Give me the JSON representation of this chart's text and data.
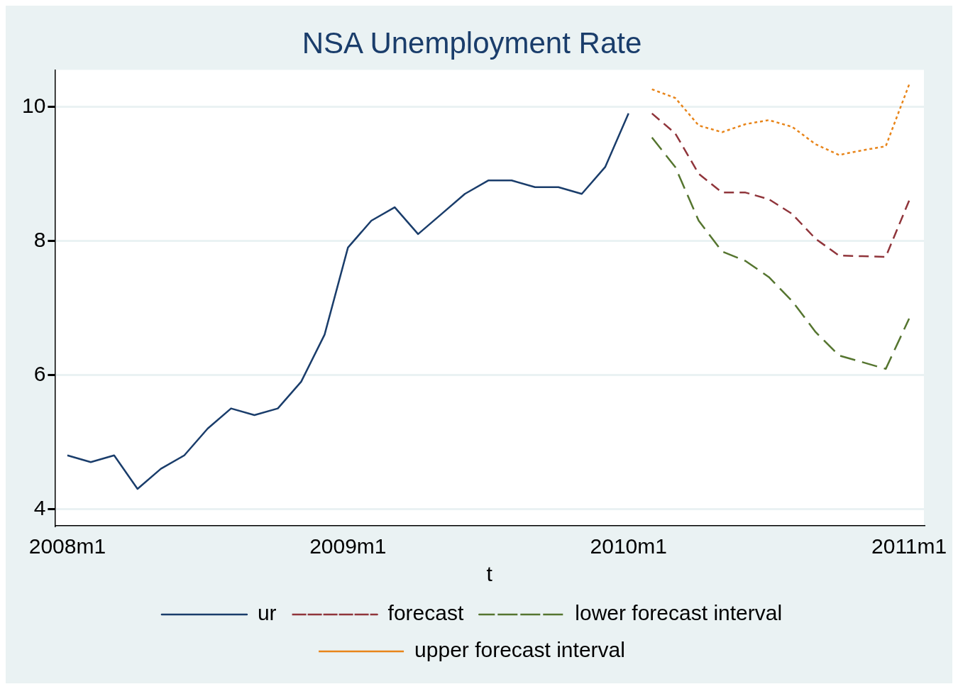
{
  "chart_data": {
    "type": "line",
    "title": "NSA Unemployment Rate",
    "xlabel": "t",
    "xlim": [
      "2007-12-15",
      "2011-01-20"
    ],
    "xticks": [
      {
        "value": "2008-01",
        "label": "2008m1"
      },
      {
        "value": "2009-01",
        "label": "2009m1"
      },
      {
        "value": "2010-01",
        "label": "2010m1"
      },
      {
        "value": "2011-01",
        "label": "2011m1"
      }
    ],
    "ylim": [
      3.75,
      10.55
    ],
    "yticks": [
      4,
      6,
      8,
      10
    ],
    "grid": "y",
    "legend": "bottom",
    "marker": "none",
    "series": [
      {
        "name": "ur",
        "color": "#1a3d6b",
        "line_style": "solid",
        "x": [
          "2008-01",
          "2008-02",
          "2008-03",
          "2008-04",
          "2008-05",
          "2008-06",
          "2008-07",
          "2008-08",
          "2008-09",
          "2008-10",
          "2008-11",
          "2008-12",
          "2009-01",
          "2009-02",
          "2009-03",
          "2009-04",
          "2009-05",
          "2009-06",
          "2009-07",
          "2009-08",
          "2009-09",
          "2009-10",
          "2009-11",
          "2009-12",
          "2010-01"
        ],
        "values": [
          4.8,
          4.7,
          4.8,
          4.3,
          4.6,
          4.8,
          5.2,
          5.5,
          5.4,
          5.5,
          5.9,
          6.6,
          7.9,
          8.3,
          8.5,
          8.1,
          8.4,
          8.7,
          8.9,
          8.9,
          8.8,
          8.8,
          8.7,
          9.1,
          9.9
        ]
      },
      {
        "name": "forecast",
        "color": "#90353b",
        "line_style": "dashed",
        "x": [
          "2010-02",
          "2010-03",
          "2010-04",
          "2010-05",
          "2010-06",
          "2010-07",
          "2010-08",
          "2010-09",
          "2010-10",
          "2010-11",
          "2010-12",
          "2011-01"
        ],
        "values": [
          9.9,
          9.6,
          9.0,
          8.72,
          8.72,
          8.62,
          8.4,
          8.03,
          7.78,
          7.77,
          7.76,
          8.6
        ]
      },
      {
        "name": "lower forecast interval",
        "color": "#55752f",
        "line_style": "dashed",
        "x": [
          "2010-02",
          "2010-03",
          "2010-04",
          "2010-05",
          "2010-06",
          "2010-07",
          "2010-08",
          "2010-09",
          "2010-10",
          "2010-11",
          "2010-12",
          "2011-01"
        ],
        "values": [
          9.54,
          9.1,
          8.3,
          7.84,
          7.7,
          7.46,
          7.1,
          6.64,
          6.29,
          6.19,
          6.09,
          6.84
        ]
      },
      {
        "name": "upper forecast interval",
        "color": "#e8851a",
        "line_style": "dotted",
        "x": [
          "2010-02",
          "2010-03",
          "2010-04",
          "2010-05",
          "2010-06",
          "2010-07",
          "2010-08",
          "2010-09",
          "2010-10",
          "2010-11",
          "2010-12",
          "2011-01"
        ],
        "values": [
          10.26,
          10.13,
          9.72,
          9.62,
          9.74,
          9.8,
          9.7,
          9.44,
          9.28,
          9.35,
          9.41,
          10.33
        ]
      }
    ]
  }
}
